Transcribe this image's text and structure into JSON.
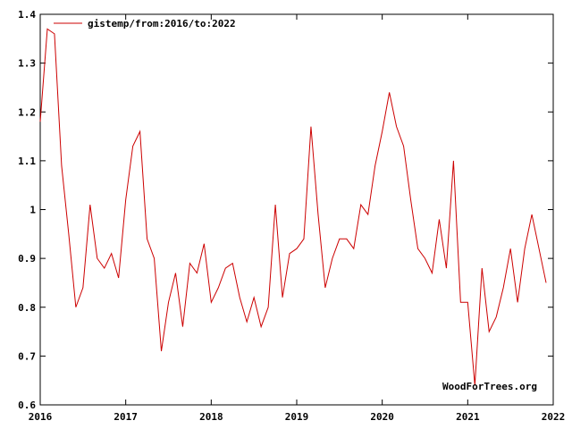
{
  "chart_data": {
    "type": "line",
    "title": "",
    "xlabel": "",
    "ylabel": "",
    "xlim": [
      2016,
      2022
    ],
    "ylim": [
      0.6,
      1.4
    ],
    "x_ticks": [
      "2016",
      "2017",
      "2018",
      "2019",
      "2020",
      "2021",
      "2022"
    ],
    "y_ticks": [
      "0.6",
      "0.7",
      "0.8",
      "0.9",
      "1",
      "1.1",
      "1.2",
      "1.3",
      "1.4"
    ],
    "grid": false,
    "legend_position": "top-left",
    "series": [
      {
        "name": "gistemp/from:2016/to:2022",
        "color": "#cc0000",
        "x_start": 2016,
        "x_step": 0.0833333,
        "values": [
          1.18,
          1.37,
          1.36,
          1.09,
          0.95,
          0.8,
          0.84,
          1.01,
          0.9,
          0.88,
          0.91,
          0.86,
          1.02,
          1.13,
          1.16,
          0.94,
          0.9,
          0.71,
          0.81,
          0.87,
          0.76,
          0.89,
          0.87,
          0.93,
          0.81,
          0.84,
          0.88,
          0.89,
          0.82,
          0.77,
          0.82,
          0.76,
          0.8,
          1.01,
          0.82,
          0.91,
          0.92,
          0.94,
          1.17,
          0.99,
          0.84,
          0.9,
          0.94,
          0.94,
          0.92,
          1.01,
          0.99,
          1.09,
          1.16,
          1.24,
          1.17,
          1.13,
          1.02,
          0.92,
          0.9,
          0.87,
          0.98,
          0.88,
          1.1,
          0.81,
          0.81,
          0.64,
          0.88,
          0.75,
          0.78,
          0.84,
          0.92,
          0.81,
          0.92,
          0.99,
          0.92,
          0.85
        ]
      }
    ],
    "annotations": [
      "WoodForTrees.org"
    ]
  }
}
